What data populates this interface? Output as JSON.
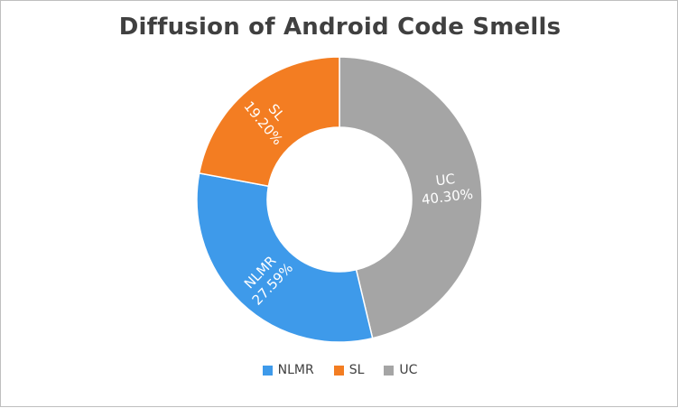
{
  "chart_data": {
    "type": "pie",
    "style": "donut",
    "title": "Diffusion of Android Code Smells",
    "legend_position": "bottom",
    "slices": [
      {
        "name": "UC",
        "value": 40.3,
        "label": "40.30%",
        "color": "#a5a5a5"
      },
      {
        "name": "NLMR",
        "value": 27.59,
        "label": "27.59%",
        "color": "#3e9aea"
      },
      {
        "name": "SL",
        "value": 19.2,
        "label": "19.20%",
        "color": "#f37d22"
      }
    ]
  },
  "legend": {
    "items": [
      {
        "label": "NLMR",
        "color": "#3e9aea"
      },
      {
        "label": "SL",
        "color": "#f37d22"
      },
      {
        "label": "UC",
        "color": "#a5a5a5"
      }
    ]
  }
}
